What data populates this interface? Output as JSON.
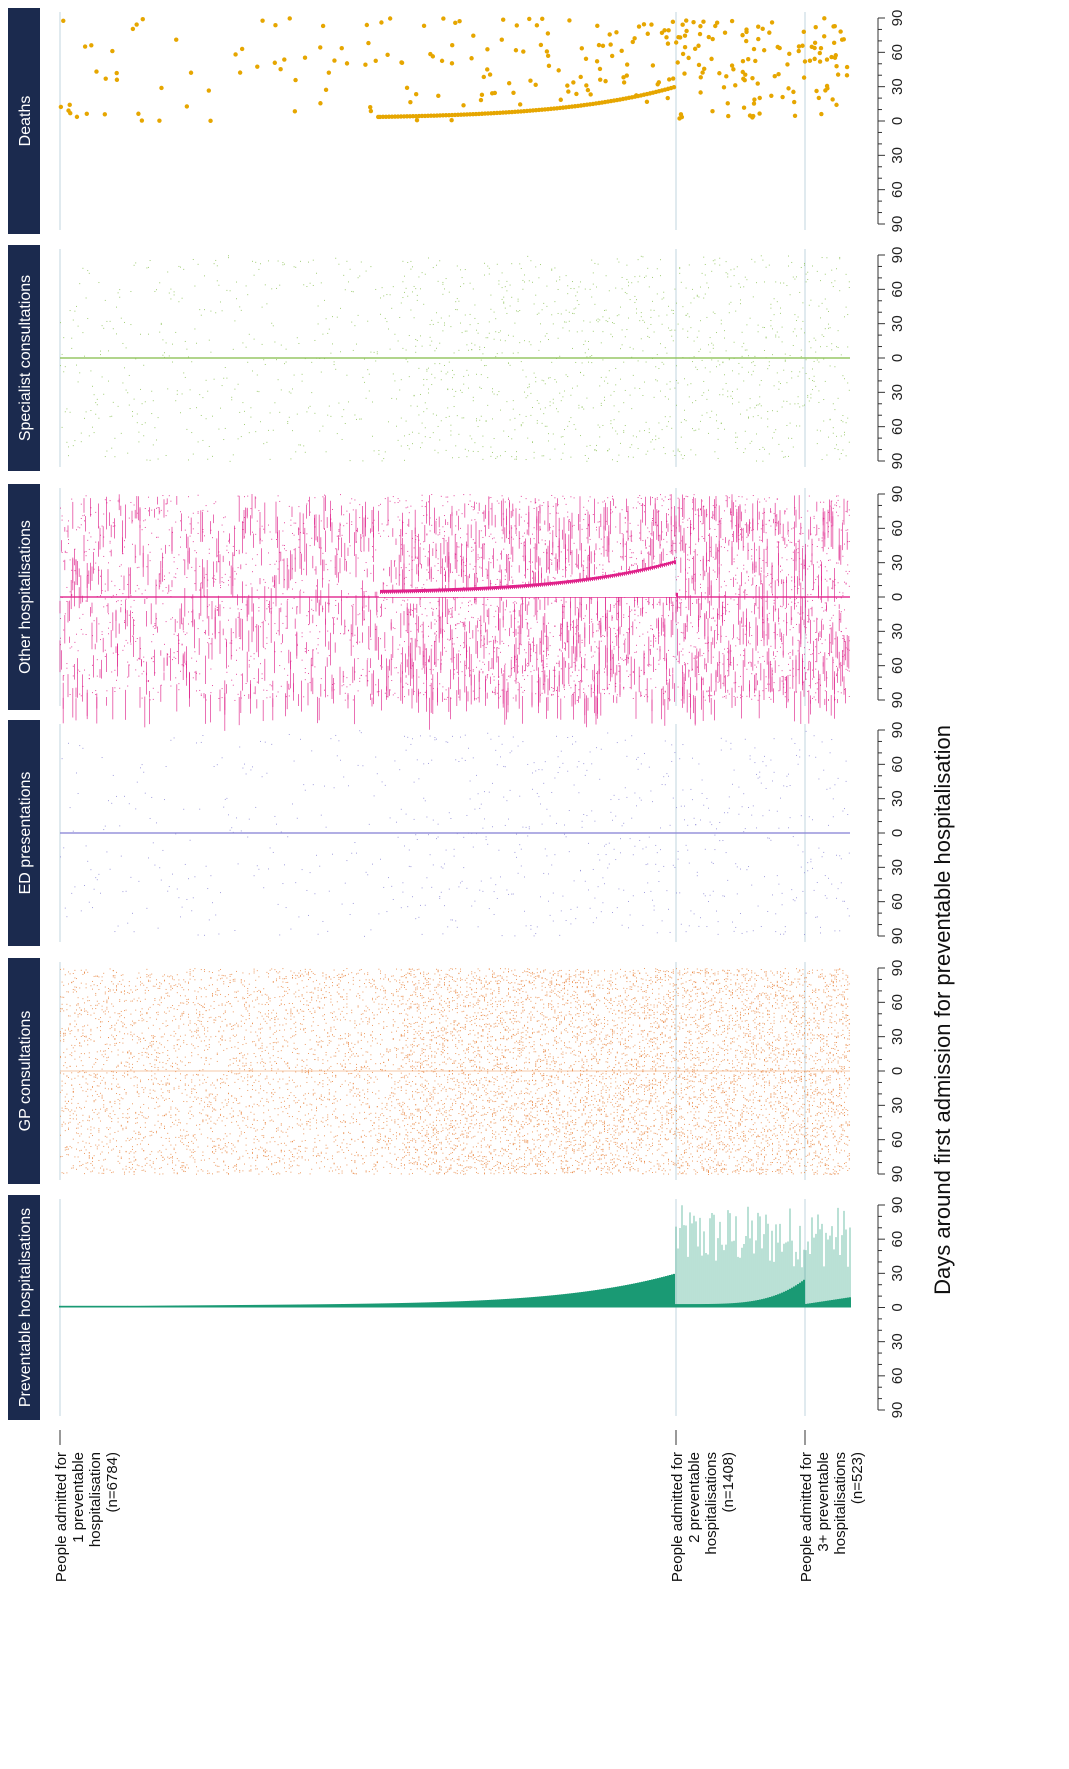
{
  "chart_data": {
    "type": "scatter",
    "title": "",
    "xlabel": "Days around first admission for preventable hospitalisation",
    "ylabel": "",
    "x_ticks": [
      "90",
      "60",
      "30",
      "0",
      "30",
      "60",
      "90"
    ],
    "x_tick_values": [
      -90,
      -60,
      -30,
      0,
      30,
      60,
      90
    ],
    "xlim": [
      -90,
      90
    ],
    "groups": [
      {
        "label_lines": [
          "People admitted for",
          "1 preventable",
          "hospitalisation",
          "(n=6784)"
        ],
        "n": 6784
      },
      {
        "label_lines": [
          "People admitted for",
          "2 preventable",
          "hospitalisations",
          "(n=1408)"
        ],
        "n": 1408
      },
      {
        "label_lines": [
          "People admitted for",
          "3+ preventable",
          "hospitalisations",
          "(n=523)"
        ],
        "n": 523
      }
    ],
    "panels": [
      {
        "name": "Preventable hospitalisations",
        "color": "#1a9a74"
      },
      {
        "name": "GP consultations",
        "color": "#e8843f"
      },
      {
        "name": "ED presentations",
        "color": "#8c88d6"
      },
      {
        "name": "Other hospitalisations",
        "color": "#e0218a"
      },
      {
        "name": "Specialist consultations",
        "color": "#8cc256"
      },
      {
        "name": "Deaths",
        "color": "#e6a600"
      }
    ]
  },
  "colors": {
    "banner": "#1b2a4e",
    "gridline": "#d6e3ea",
    "axis": "#333333"
  }
}
